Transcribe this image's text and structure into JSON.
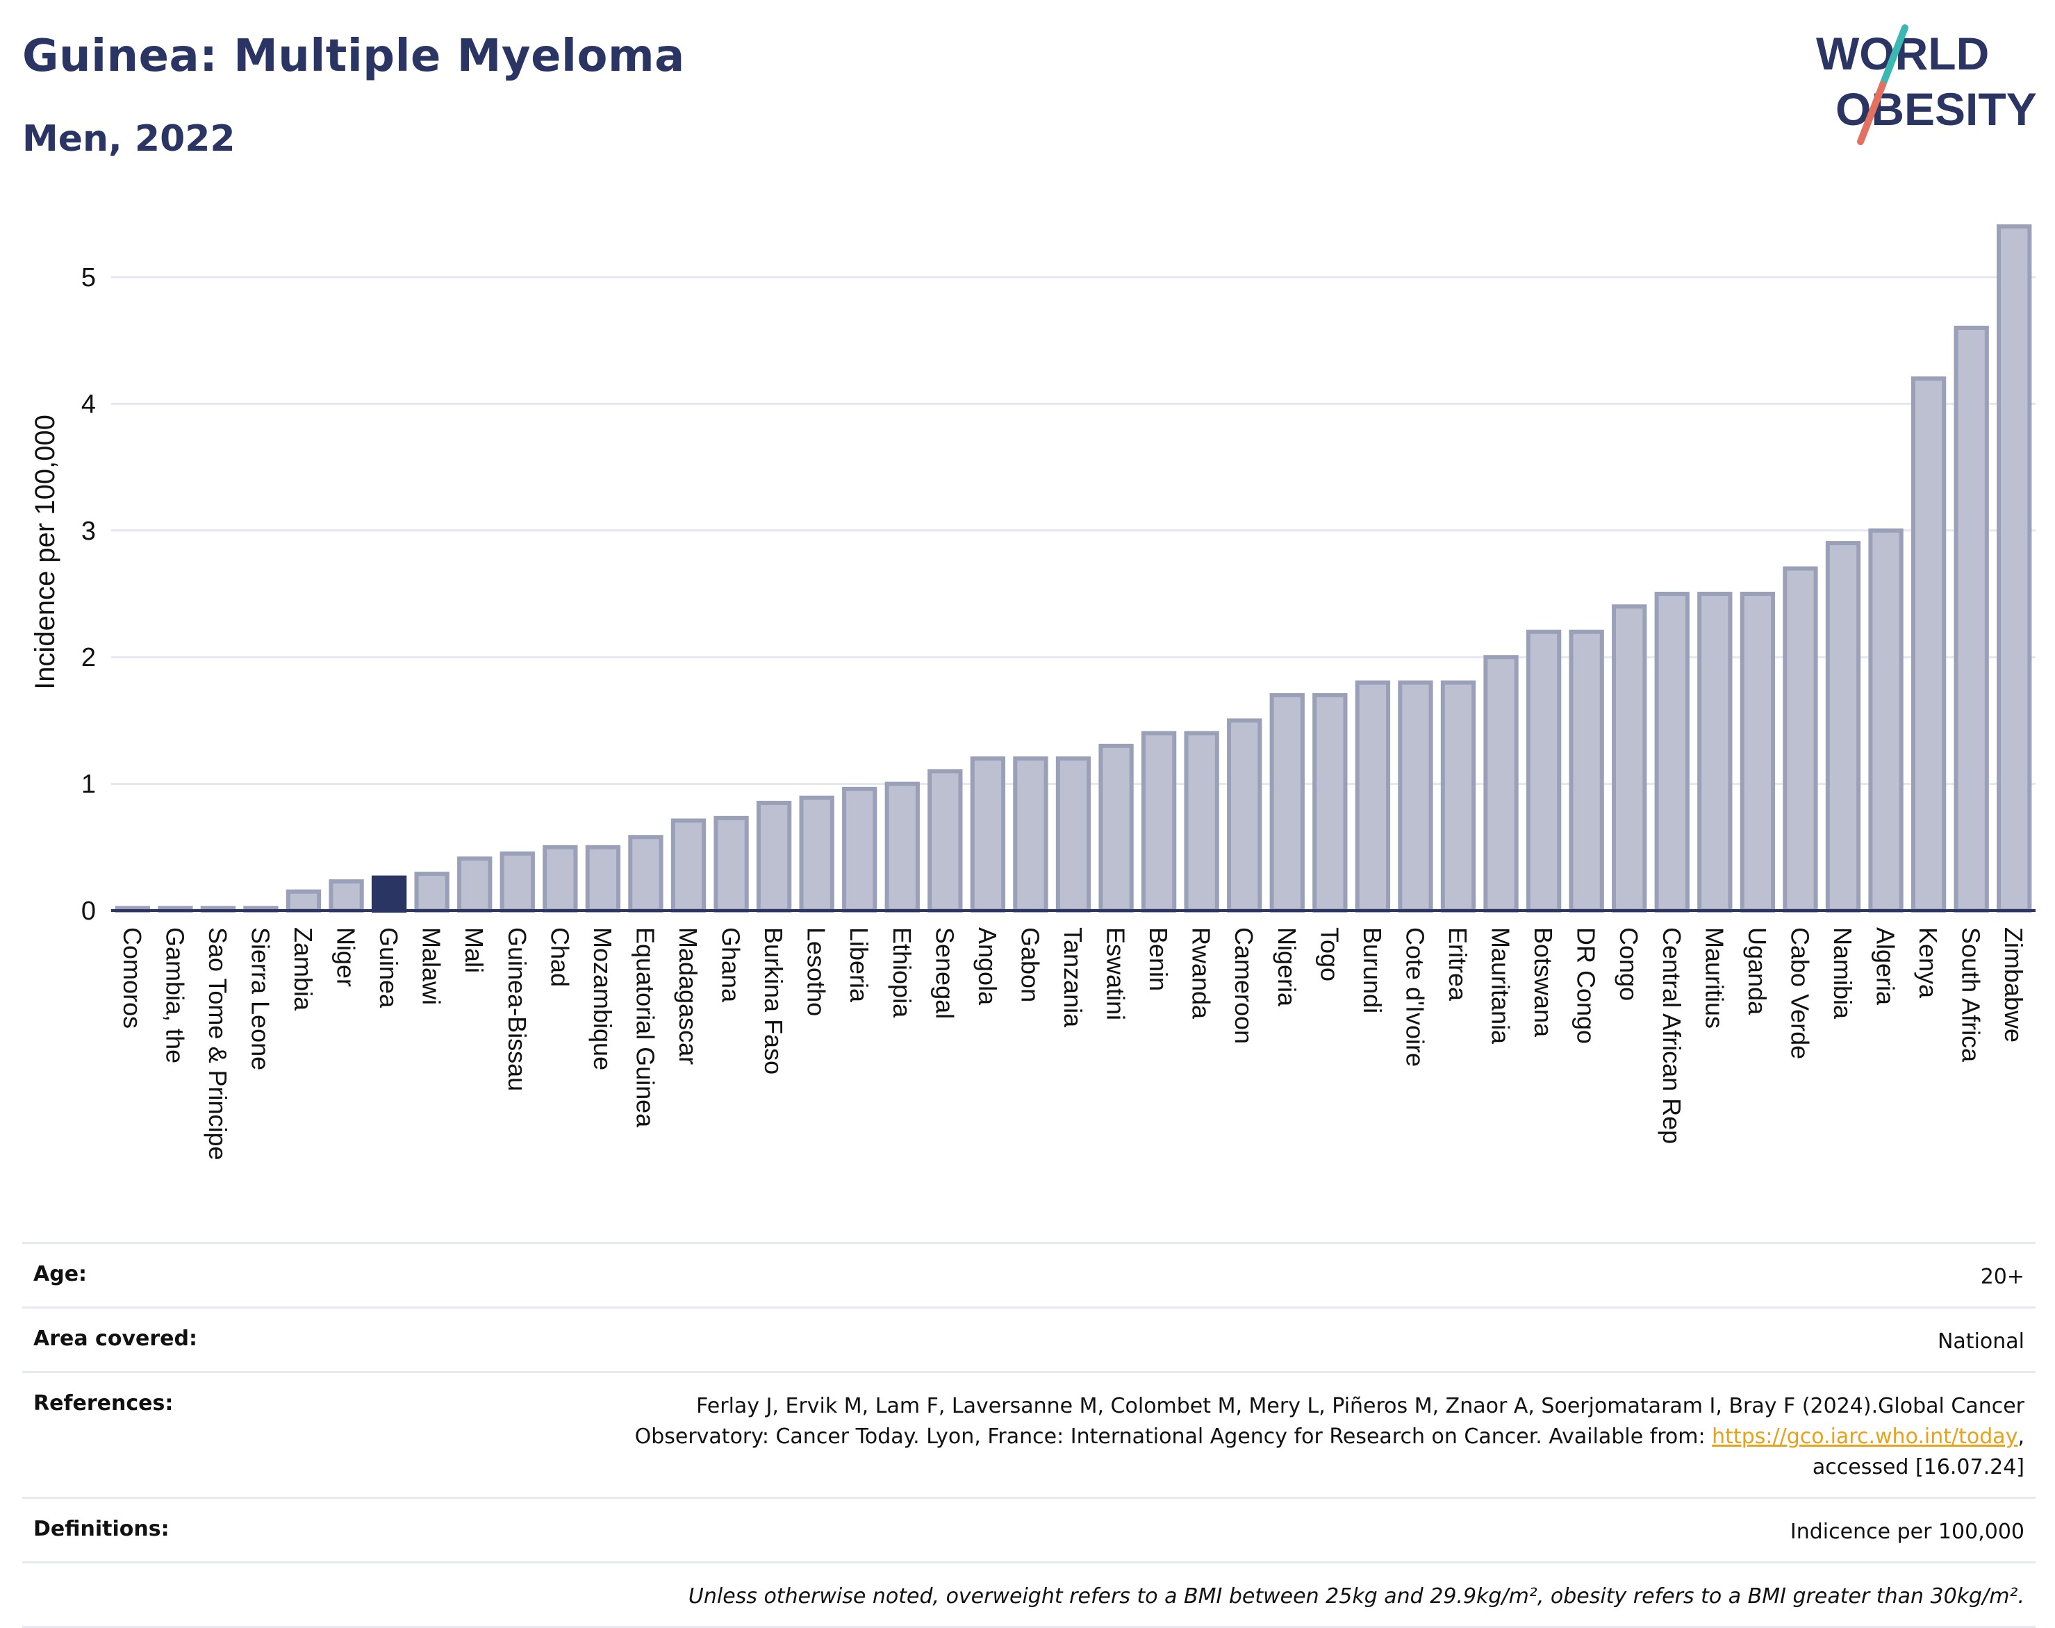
{
  "header": {
    "title": "Guinea: Multiple Myeloma",
    "subtitle": "Men, 2022"
  },
  "logo": {
    "line1": "WORLD",
    "line2": "OBESITY"
  },
  "chart_data": {
    "type": "bar",
    "ylabel": "Incidence per 100,000",
    "xlabel": "",
    "ylim": [
      0,
      5.5
    ],
    "yticks": [
      0,
      1,
      2,
      3,
      4,
      5
    ],
    "highlight": "Guinea",
    "grid": true,
    "categories": [
      "Comoros",
      "Gambia, the",
      "Sao Tome & Principe",
      "Sierra Leone",
      "Zambia",
      "Niger",
      "Guinea",
      "Malawi",
      "Mali",
      "Guinea-Bissau",
      "Chad",
      "Mozambique",
      "Equatorial Guinea",
      "Madagascar",
      "Ghana",
      "Burkina Faso",
      "Lesotho",
      "Liberia",
      "Ethiopia",
      "Senegal",
      "Angola",
      "Gabon",
      "Tanzania",
      "Eswatini",
      "Benin",
      "Rwanda",
      "Cameroon",
      "Nigeria",
      "Togo",
      "Burundi",
      "Cote d'Ivoire",
      "Eritrea",
      "Mauritania",
      "Botswana",
      "DR Congo",
      "Congo",
      "Central African Rep",
      "Mauritius",
      "Uganda",
      "Cabo Verde",
      "Namibia",
      "Algeria",
      "Kenya",
      "South Africa",
      "Zimbabwe"
    ],
    "values": [
      0.02,
      0.02,
      0.02,
      0.02,
      0.15,
      0.23,
      0.26,
      0.29,
      0.41,
      0.45,
      0.5,
      0.5,
      0.58,
      0.71,
      0.73,
      0.85,
      0.89,
      0.96,
      1.0,
      1.1,
      1.2,
      1.2,
      1.2,
      1.3,
      1.4,
      1.4,
      1.5,
      1.7,
      1.7,
      1.8,
      1.8,
      1.8,
      2.0,
      2.2,
      2.2,
      2.4,
      2.5,
      2.5,
      2.5,
      2.7,
      2.9,
      3.0,
      4.2,
      4.6,
      5.4
    ],
    "colors": {
      "bar": "#bcc0d0",
      "bar_border": "#9aa0b8",
      "highlight": "#2a3563"
    }
  },
  "meta": {
    "age_label": "Age:",
    "age_value": "20+",
    "area_label": "Area covered:",
    "area_value": "National",
    "references_label": "References:",
    "references_line1": "Ferlay J, Ervik M, Lam F, Laversanne M, Colombet M, Mery L, Piñeros M, Znaor A, Soerjomataram I, Bray F (2024).Global Cancer",
    "references_line2_pre": "Observatory: Cancer Today. Lyon, France: International Agency for Research on Cancer. Available from: ",
    "references_link": "https://gco.iarc.who.int/today",
    "references_line2_post": ",",
    "references_line3": "accessed [16.07.24]",
    "definitions_label": "Definitions:",
    "definitions_value": "Indicence per 100,000",
    "note": "Unless otherwise noted, overweight refers to a BMI between 25kg and 29.9kg/m², obesity refers to a BMI greater than 30kg/m²."
  }
}
